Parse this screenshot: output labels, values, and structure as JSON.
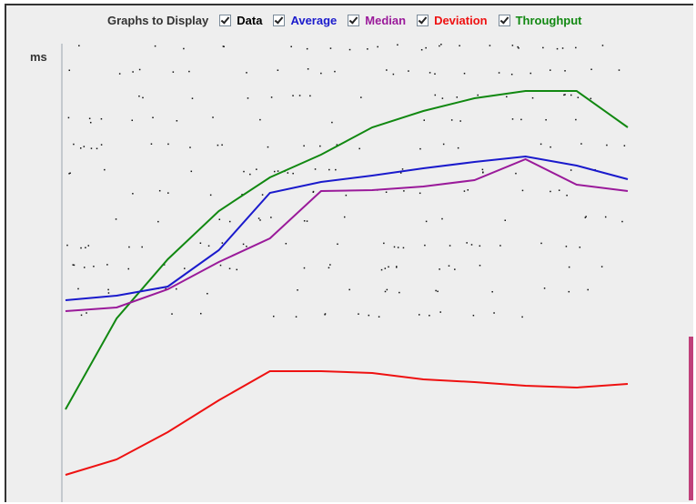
{
  "legend": {
    "title": "Graphs to Display",
    "items": [
      {
        "label": "Data",
        "color": "#000000"
      },
      {
        "label": "Average",
        "color": "#1a1acc"
      },
      {
        "label": "Median",
        "color": "#9a1a9a"
      },
      {
        "label": "Deviation",
        "color": "#ee1111"
      },
      {
        "label": "Throughput",
        "color": "#118811"
      }
    ]
  },
  "plot": {
    "y_label": "ms",
    "series": [
      {
        "name": "Throughput",
        "color": "#118811",
        "values": [
          100,
          200,
          265,
          318,
          355,
          380,
          410,
          428,
          442,
          450,
          450,
          410
        ]
      },
      {
        "name": "Average",
        "color": "#1a1acc",
        "values": [
          220,
          225,
          235,
          275,
          338,
          350,
          357,
          365,
          372,
          378,
          368,
          353
        ]
      },
      {
        "name": "Median",
        "color": "#9a1a9a",
        "values": [
          208,
          212,
          232,
          262,
          288,
          340,
          341,
          345,
          352,
          375,
          347,
          340
        ]
      },
      {
        "name": "Deviation",
        "color": "#ee1111",
        "values": [
          28,
          45,
          75,
          110,
          142,
          142,
          140,
          133,
          130,
          126,
          124,
          128
        ]
      }
    ]
  }
}
